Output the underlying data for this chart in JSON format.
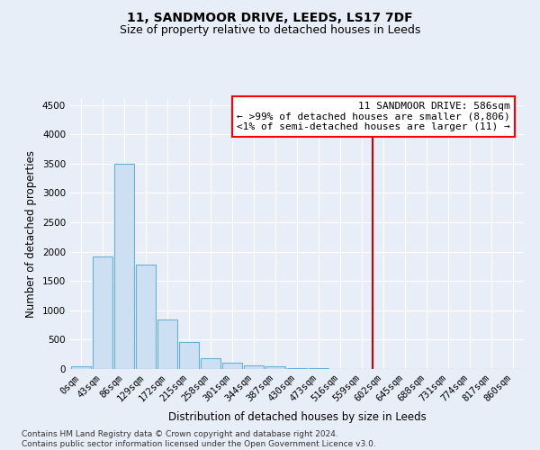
{
  "title": "11, SANDMOOR DRIVE, LEEDS, LS17 7DF",
  "subtitle": "Size of property relative to detached houses in Leeds",
  "xlabel": "Distribution of detached houses by size in Leeds",
  "ylabel": "Number of detached properties",
  "categories": [
    "0sqm",
    "43sqm",
    "86sqm",
    "129sqm",
    "172sqm",
    "215sqm",
    "258sqm",
    "301sqm",
    "344sqm",
    "387sqm",
    "430sqm",
    "473sqm",
    "516sqm",
    "559sqm",
    "602sqm",
    "645sqm",
    "688sqm",
    "731sqm",
    "774sqm",
    "817sqm",
    "860sqm"
  ],
  "values": [
    50,
    1920,
    3500,
    1775,
    840,
    455,
    185,
    100,
    65,
    40,
    20,
    10,
    5,
    0,
    0,
    0,
    0,
    0,
    0,
    0,
    0
  ],
  "bar_color": "#ccdff3",
  "bar_edge_color": "#6aafd6",
  "vline_color": "#cc0000",
  "annotation_text": "11 SANDMOOR DRIVE: 586sqm\n← >99% of detached houses are smaller (8,806)\n<1% of semi-detached houses are larger (11) →",
  "ylim": [
    0,
    4600
  ],
  "yticks": [
    0,
    500,
    1000,
    1500,
    2000,
    2500,
    3000,
    3500,
    4000,
    4500
  ],
  "background_color": "#e8eef8",
  "grid_color": "#ffffff",
  "footer": "Contains HM Land Registry data © Crown copyright and database right 2024.\nContains public sector information licensed under the Open Government Licence v3.0.",
  "title_fontsize": 10,
  "subtitle_fontsize": 9,
  "axis_label_fontsize": 8.5,
  "tick_fontsize": 7.5,
  "annotation_fontsize": 8,
  "footer_fontsize": 6.5
}
